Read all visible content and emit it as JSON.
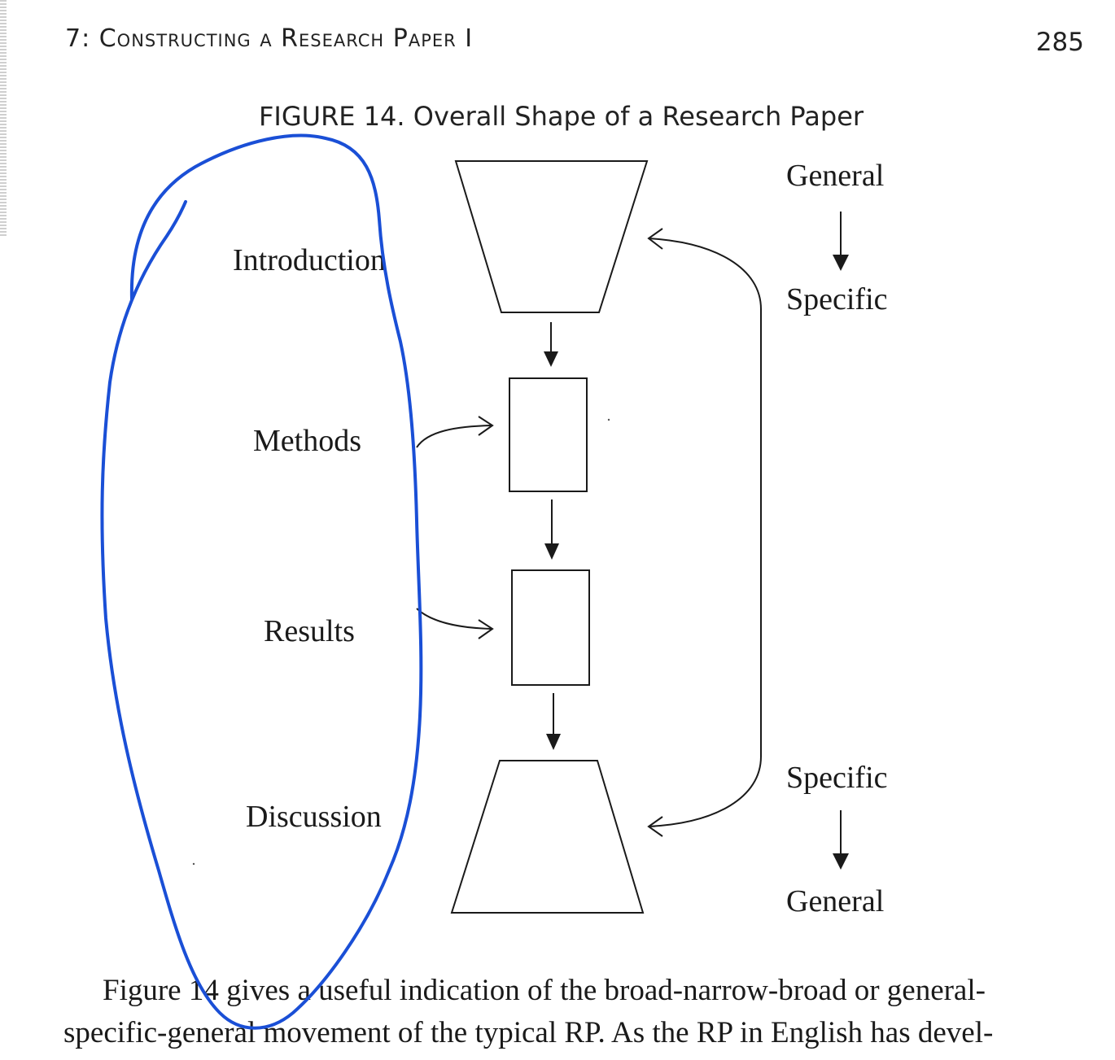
{
  "running_head": "7: Constructing a Research Paper I",
  "page_number": "285",
  "figure": {
    "caption": "FIGURE 14. Overall Shape of a Research Paper",
    "sections": [
      "Introduction",
      "Methods",
      "Results",
      "Discussion"
    ],
    "top_scale": {
      "from": "General",
      "to": "Specific"
    },
    "bottom_scale": {
      "from": "Specific",
      "to": "General"
    }
  },
  "body": {
    "line1": "Figure 14 gives a useful indication of the broad-narrow-broad or general-",
    "line2": "specific-general movement of the typical RP. As the RP in English has devel-"
  },
  "colors": {
    "annotation_ink": "#1a4fd6",
    "text": "#1a1a1a"
  }
}
